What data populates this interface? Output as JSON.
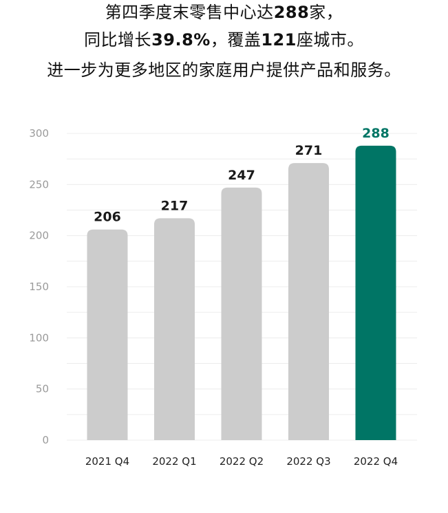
{
  "headline": {
    "line1": {
      "pre": "第四季度末零售中心达",
      "num": "288",
      "post": "家，"
    },
    "line2": {
      "pre": "同比增长",
      "num1": "39.8%",
      "mid": "，覆盖",
      "num2": "121",
      "post": "座城市。"
    },
    "line3": "进一步为更多地区的家庭用户提供产品和服务。"
  },
  "colors": {
    "bar_default": "#cccccc",
    "bar_highlight": "#007565",
    "value_default": "#1a1a1a",
    "value_highlight": "#007565",
    "gridline": "#ececec"
  },
  "chart_data": {
    "type": "bar",
    "title": "",
    "xlabel": "",
    "ylabel": "",
    "categories": [
      "2021 Q4",
      "2022 Q1",
      "2022 Q2",
      "2022 Q3",
      "2022 Q4"
    ],
    "values": [
      206,
      217,
      247,
      271,
      288
    ],
    "value_labels": [
      "206",
      "217",
      "247",
      "271",
      "288"
    ],
    "highlight_index": 4,
    "ylim": [
      0,
      300
    ],
    "yticks": [
      0,
      50,
      100,
      150,
      200,
      250,
      300
    ],
    "ytick_labels": [
      "0",
      "50",
      "100",
      "150",
      "200",
      "250",
      "300"
    ],
    "grid": true,
    "legend": "none"
  }
}
